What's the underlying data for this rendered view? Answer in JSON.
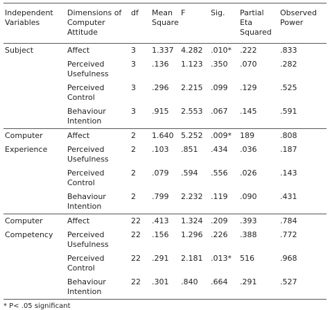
{
  "table": {
    "header": [
      "Independent Variables",
      "Dimensions of Computer Attitude",
      "df",
      "Mean Square",
      "F",
      "Sig.",
      "Partial Eta Squared",
      "Observed Power"
    ],
    "rows": [
      [
        "Subject",
        "Affect",
        "3",
        "1.337",
        "4.282",
        ".010*",
        ".222",
        ".833"
      ],
      [
        null,
        "Perceived Usefulness",
        "3",
        ".136",
        "1.123",
        ".350",
        ".070",
        ".282"
      ],
      [
        null,
        "Perceived Control",
        "3",
        ".296",
        "2.215",
        ".099",
        ".129",
        ".525"
      ],
      [
        null,
        "Behaviour Intention",
        "3",
        ".915",
        "2.553",
        ".067",
        ".145",
        ".591"
      ],
      [
        "Computer",
        "Affect",
        "2",
        "1.640",
        "5.252",
        ".009*",
        "189",
        ".808"
      ],
      [
        "Experience",
        "Perceived Usefulness",
        "2",
        ".103",
        ".851",
        ".434",
        ".036",
        ".187"
      ],
      [
        null,
        "Perceived Control",
        "2",
        ".079",
        ".594",
        ".556",
        ".026",
        ".143"
      ],
      [
        null,
        "Behaviour Intention",
        "2",
        ".799",
        "2.232",
        ".119",
        ".090",
        ".431"
      ],
      [
        "Computer",
        "Affect",
        "22",
        ".413",
        "1.324",
        ".209",
        ".393",
        ".784"
      ],
      [
        "Competency",
        "Perceived Usefulness",
        "22",
        ".156",
        "1.296",
        ".226",
        ".388",
        ".772"
      ],
      [
        null,
        "Perceived Control",
        "22",
        ".291",
        "2.181",
        ".013*",
        "516",
        ".968"
      ],
      [
        null,
        "Behaviour Intention",
        "22",
        ".301",
        ".840",
        ".664",
        ".291",
        ".527"
      ]
    ],
    "footnote": "* P< .05 significant"
  }
}
